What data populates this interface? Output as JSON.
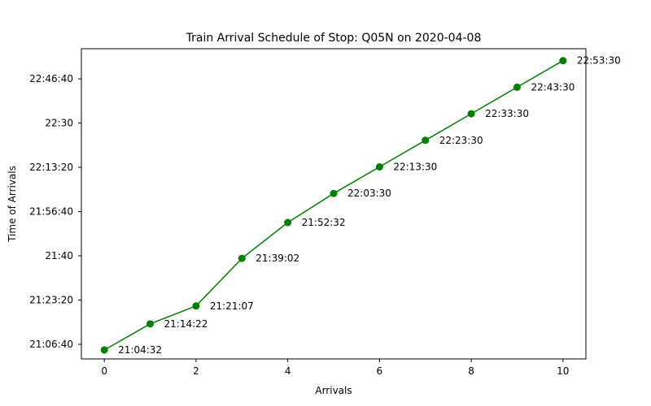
{
  "chart_data": {
    "type": "line",
    "title": "Train Arrival Schedule of Stop: Q05N on 2020-04-08",
    "xlabel": "Arrivals",
    "ylabel": "Time of Arrivals",
    "xlim": [
      -0.5,
      10.5
    ],
    "ylim": [
      "21:01:10",
      "22:58:00"
    ],
    "xticks": [
      0,
      2,
      4,
      6,
      8,
      10
    ],
    "yticks": [
      "21:06:40",
      "21:23:20",
      "21:40",
      "21:56:40",
      "22:13:20",
      "22:30",
      "22:46:40"
    ],
    "grid": false,
    "series": [
      {
        "color": "#008000",
        "x": [
          0,
          1,
          2,
          3,
          4,
          5,
          6,
          7,
          8,
          9,
          10
        ],
        "y": [
          "21:04:32",
          "21:14:22",
          "21:21:07",
          "21:39:02",
          "21:52:32",
          "22:03:30",
          "22:13:30",
          "22:23:30",
          "22:33:30",
          "22:43:30",
          "22:53:30"
        ],
        "labels": [
          "21:04:32",
          "21:14:22",
          "21:21:07",
          "21:39:02",
          "21:52:32",
          "22:03:30",
          "22:13:30",
          "22:23:30",
          "22:33:30",
          "22:43:30",
          "22:53:30"
        ]
      }
    ]
  }
}
